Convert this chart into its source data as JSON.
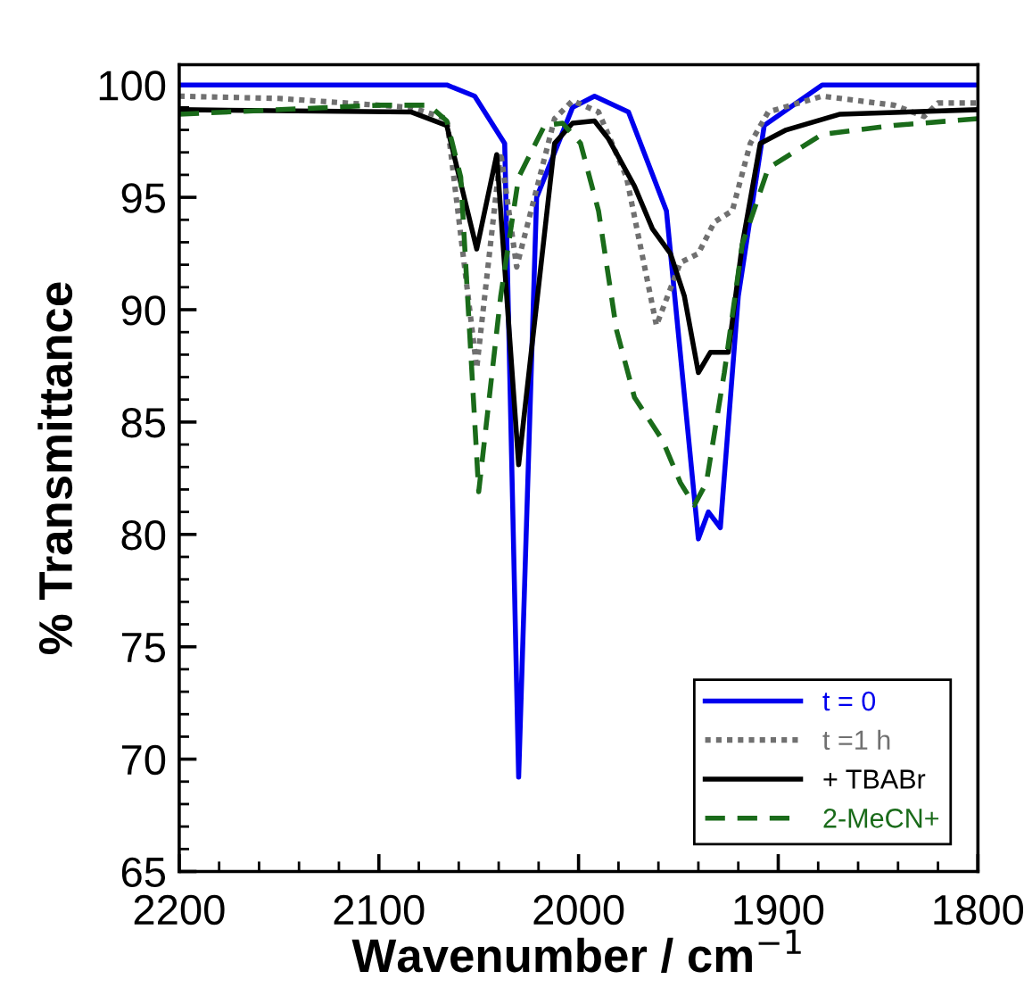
{
  "chart_data": {
    "type": "line",
    "xlabel": "Wavenumber / cm$^{−1}$",
    "ylabel": "% Transmittance",
    "xlim": [
      2200,
      1800
    ],
    "xticks": [
      2200,
      2100,
      2000,
      1900,
      1800
    ],
    "ylim": [
      65,
      100.9
    ],
    "yticks": [
      65,
      70,
      75,
      80,
      85,
      90,
      95,
      100
    ],
    "grid": false,
    "legend": "bottom right",
    "marker": "none",
    "series": [
      {
        "name": "t = 0",
        "color": "#0000ee",
        "line_style": "solid",
        "x": [
          2200,
          2100,
          2066,
          2052,
          2037,
          2030,
          2021,
          2003,
          1992,
          1975,
          1956,
          1940,
          1935,
          1929,
          1920,
          1907,
          1878,
          1800
        ],
        "values": [
          100,
          100,
          100,
          99.5,
          97.4,
          69.2,
          95,
          99,
          99.5,
          98.8,
          94.4,
          79.8,
          81,
          80.3,
          90.6,
          98.2,
          100,
          100
        ]
      },
      {
        "name": "t =1 h",
        "color": "#707070",
        "line_style": "dotted",
        "x": [
          2200,
          2150,
          2084,
          2066,
          2051,
          2039,
          2031,
          2012,
          2003,
          1990,
          1976,
          1961,
          1949,
          1940,
          1932,
          1923,
          1914,
          1905,
          1878,
          1842,
          1827,
          1820,
          1800
        ],
        "values": [
          99.5,
          99.4,
          99.0,
          98.5,
          87.4,
          97,
          91.9,
          98.5,
          99.3,
          98.8,
          95.9,
          89.3,
          92.1,
          92.5,
          93.9,
          94.4,
          97.4,
          98.8,
          99.5,
          99.1,
          98.6,
          99.2,
          99.2
        ]
      },
      {
        "name": "+ TBABr",
        "color": "#000000",
        "line_style": "solid",
        "x": [
          2200,
          2084,
          2066,
          2051,
          2041,
          2030,
          2012,
          2003,
          1992,
          1985,
          1972,
          1963,
          1954,
          1947,
          1940,
          1934,
          1925,
          1918,
          1909,
          1896,
          1869,
          1800
        ],
        "values": [
          98.9,
          98.8,
          98.2,
          92.7,
          96.9,
          83.1,
          97.4,
          98.3,
          98.4,
          97.6,
          95.5,
          93.6,
          92.5,
          90.6,
          87.2,
          88.1,
          88.1,
          92.9,
          97.4,
          98,
          98.7,
          98.9
        ]
      },
      {
        "name": "2-MeCN+",
        "color": "#1a6b1a",
        "line_style": "dashed",
        "x": [
          2200,
          2100,
          2075,
          2066,
          2059,
          2050,
          2039,
          2030,
          2017,
          2008,
          1999,
          1990,
          1981,
          1972,
          1958,
          1949,
          1942,
          1936,
          1927,
          1918,
          1905,
          1878,
          1842,
          1800
        ],
        "values": [
          98.7,
          99.1,
          99.1,
          98.4,
          95.9,
          81.9,
          90.6,
          95.9,
          98.2,
          98.3,
          97.4,
          94.4,
          89.1,
          86.1,
          84.2,
          82.3,
          81.3,
          82.3,
          87.2,
          92.9,
          96.3,
          97.8,
          98.2,
          98.5
        ]
      }
    ]
  }
}
